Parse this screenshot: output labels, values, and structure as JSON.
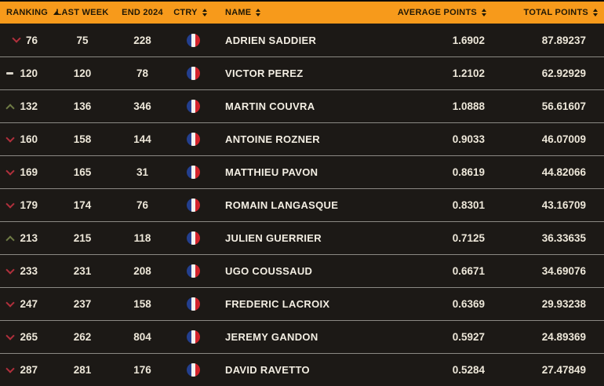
{
  "table": {
    "columns": [
      {
        "key": "ranking",
        "label": "RANKING",
        "sort_icon": "asc"
      },
      {
        "key": "last_week",
        "label": "LAST WEEK",
        "sort_icon": "none"
      },
      {
        "key": "end_2024",
        "label": "END 2024",
        "sort_icon": "none"
      },
      {
        "key": "ctry",
        "label": "CTRY",
        "sort_icon": "both"
      },
      {
        "key": "name",
        "label": "NAME",
        "sort_icon": "both"
      },
      {
        "key": "average_points",
        "label": "AVERAGE POINTS",
        "sort_icon": "both"
      },
      {
        "key": "total_points",
        "label": "TOTAL POINTS",
        "sort_icon": "both"
      }
    ],
    "rows": [
      {
        "change": "down",
        "ranking": "76",
        "last_week": "75",
        "end_2024": "228",
        "ctry": "FRA",
        "name": "ADRIEN SADDIER",
        "average_points": "1.6902",
        "total_points": "87.89237"
      },
      {
        "change": "same",
        "ranking": "120",
        "last_week": "120",
        "end_2024": "78",
        "ctry": "FRA",
        "name": "VICTOR PEREZ",
        "average_points": "1.2102",
        "total_points": "62.92929"
      },
      {
        "change": "up",
        "ranking": "132",
        "last_week": "136",
        "end_2024": "346",
        "ctry": "FRA",
        "name": "MARTIN COUVRA",
        "average_points": "1.0888",
        "total_points": "56.61607"
      },
      {
        "change": "down",
        "ranking": "160",
        "last_week": "158",
        "end_2024": "144",
        "ctry": "FRA",
        "name": "ANTOINE ROZNER",
        "average_points": "0.9033",
        "total_points": "46.07009"
      },
      {
        "change": "down",
        "ranking": "169",
        "last_week": "165",
        "end_2024": "31",
        "ctry": "FRA",
        "name": "MATTHIEU PAVON",
        "average_points": "0.8619",
        "total_points": "44.82066"
      },
      {
        "change": "down",
        "ranking": "179",
        "last_week": "174",
        "end_2024": "76",
        "ctry": "FRA",
        "name": "ROMAIN LANGASQUE",
        "average_points": "0.8301",
        "total_points": "43.16709"
      },
      {
        "change": "up",
        "ranking": "213",
        "last_week": "215",
        "end_2024": "118",
        "ctry": "FRA",
        "name": "JULIEN GUERRIER",
        "average_points": "0.7125",
        "total_points": "36.33635"
      },
      {
        "change": "down",
        "ranking": "233",
        "last_week": "231",
        "end_2024": "208",
        "ctry": "FRA",
        "name": "UGO COUSSAUD",
        "average_points": "0.6671",
        "total_points": "34.69076"
      },
      {
        "change": "down",
        "ranking": "247",
        "last_week": "237",
        "end_2024": "158",
        "ctry": "FRA",
        "name": "FREDERIC LACROIX",
        "average_points": "0.6369",
        "total_points": "29.93238"
      },
      {
        "change": "down",
        "ranking": "265",
        "last_week": "262",
        "end_2024": "804",
        "ctry": "FRA",
        "name": "JEREMY GANDON",
        "average_points": "0.5927",
        "total_points": "24.89369"
      },
      {
        "change": "down",
        "ranking": "287",
        "last_week": "281",
        "end_2024": "176",
        "ctry": "FRA",
        "name": "DAVID RAVETTO",
        "average_points": "0.5284",
        "total_points": "27.47849"
      }
    ]
  },
  "colors": {
    "header_bg": "#F79A1B",
    "header_text": "#201806",
    "row_bg": "#1C1916",
    "row_text": "#EDE7D9",
    "separator": "#8B8984",
    "rank_up": "#6F7B45",
    "rank_down": "#B0303C",
    "rank_same": "#D8D3C8",
    "flag_blue": "#233F8F",
    "flag_white": "#F4F2EE",
    "flag_red": "#D2232C"
  }
}
